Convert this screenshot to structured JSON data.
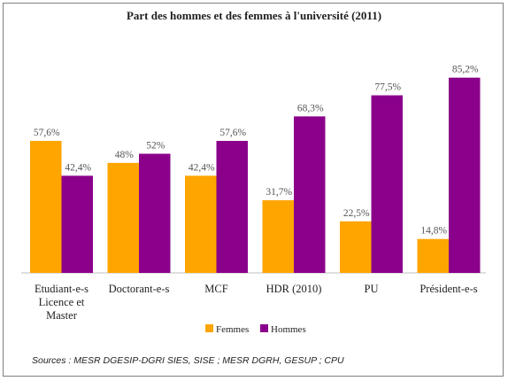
{
  "chart_data": {
    "type": "bar",
    "title": "Part des hommes et des femmes à l'université (2011)",
    "categories": [
      [
        "Etudiant-e-s",
        "Licence et",
        "Master"
      ],
      [
        "Doctorant-e-s"
      ],
      [
        "MCF"
      ],
      [
        "HDR (2010)"
      ],
      [
        "PU"
      ],
      [
        "Président-e-s"
      ]
    ],
    "series": [
      {
        "name": "Femmes",
        "color": "#ffa500",
        "values": [
          57.6,
          48,
          42.4,
          31.7,
          22.5,
          14.8
        ],
        "labels": [
          "57,6%",
          "48%",
          "42,4%",
          "31,7%",
          "22,5%",
          "14,8%"
        ]
      },
      {
        "name": "Hommes",
        "color": "#8b008b",
        "values": [
          42.4,
          52,
          57.6,
          68.3,
          77.5,
          85.2
        ],
        "labels": [
          "42,4%",
          "52%",
          "57,6%",
          "68,3%",
          "77,5%",
          "85,2%"
        ]
      }
    ],
    "ylim": [
      0,
      100
    ],
    "grid": false,
    "legend": "bottom"
  },
  "source": "Sources : MESR DGESIP-DGRI SIES, SISE ; MESR DGRH, GESUP ; CPU"
}
